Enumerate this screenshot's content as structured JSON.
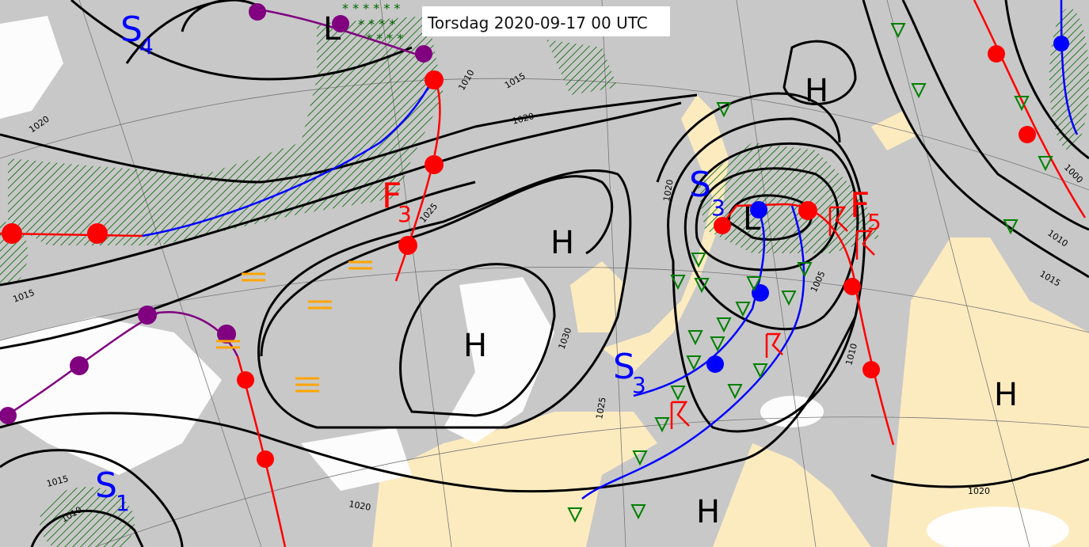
{
  "title": "Torsdag 2020-09-17 00 UTC",
  "colors": {
    "sea": "#c8c8c8",
    "land": "#fdebc0",
    "cloud": "#ffffff",
    "precip_hatch": "#006400",
    "warm_front": "#ff0000",
    "cold_front": "#0000ff",
    "occluded_front": "#800080",
    "fog": "#ffa500",
    "showers": "#008000",
    "thunder": "#ff0000"
  },
  "pressure_centers": [
    {
      "label": "H"
    },
    {
      "label": "H"
    },
    {
      "label": "H"
    },
    {
      "label": "H"
    },
    {
      "label": "H"
    },
    {
      "label": "L"
    },
    {
      "label": "L"
    }
  ],
  "front_labels": [
    {
      "name": "S",
      "sub": "4",
      "color": "#0000ff"
    },
    {
      "name": "F",
      "sub": "3",
      "color": "#ff0000"
    },
    {
      "name": "S",
      "sub": "3",
      "color": "#0000ff"
    },
    {
      "name": "F",
      "sub": "5",
      "color": "#ff0000"
    },
    {
      "name": "S",
      "sub": "3",
      "color": "#0000ff"
    },
    {
      "name": "S",
      "sub": "1",
      "color": "#0000ff"
    }
  ],
  "isobar_labels": [
    "1020",
    "1015",
    "1010",
    "1015",
    "1020",
    "1025",
    "1030",
    "1025",
    "1020",
    "1015",
    "1010",
    "1020",
    "1005",
    "1010",
    "1000",
    "1010",
    "1015",
    "1020"
  ],
  "weather_symbols": {
    "fog": "fog-symbol",
    "showers": "shower-triangle",
    "thunderstorm": "thunderstorm-symbol",
    "snow": "snow-asterisk"
  }
}
